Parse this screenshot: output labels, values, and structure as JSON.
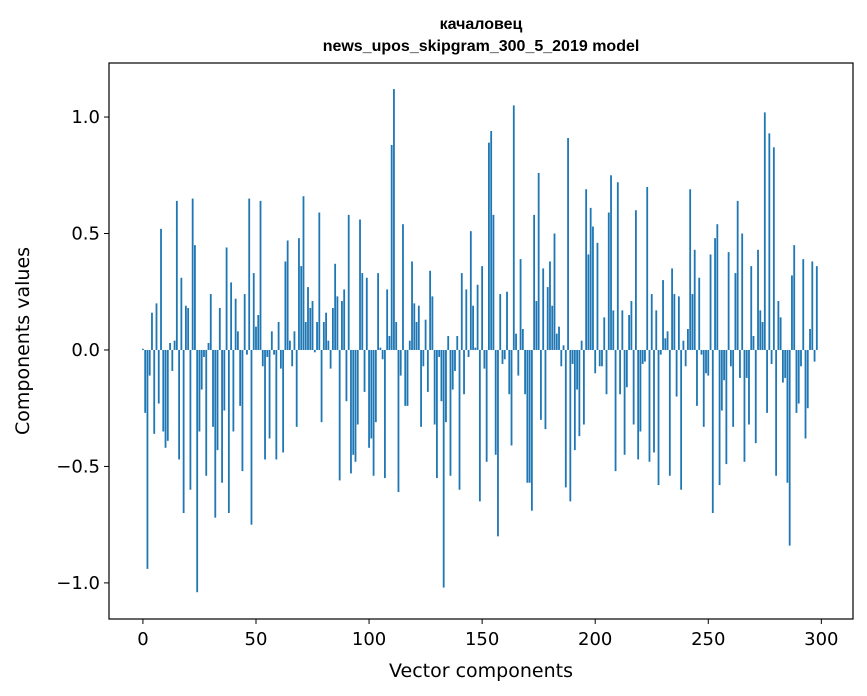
{
  "chart_data": {
    "type": "bar",
    "title": [
      "качаловец",
      "news_upos_skipgram_300_5_2019 model"
    ],
    "xlabel": "Vector components",
    "ylabel": "Components values",
    "xlim": [
      -15,
      314
    ],
    "ylim": [
      -1.155,
      1.232
    ],
    "xticks": [
      0,
      50,
      100,
      150,
      200,
      250,
      300
    ],
    "xtick_labels": [
      "0",
      "50",
      "100",
      "150",
      "200",
      "250",
      "300"
    ],
    "yticks": [
      -1.0,
      -0.5,
      0.0,
      0.5,
      1.0
    ],
    "ytick_labels": [
      "−1.0",
      "−0.5",
      "0.0",
      "0.5",
      "1.0"
    ],
    "grid": false,
    "bar_color": "#1f77b4",
    "values": [
      0.005,
      -0.27,
      -0.94,
      -0.11,
      0.16,
      -0.36,
      0.2,
      -0.23,
      0.52,
      -0.35,
      -0.42,
      -0.39,
      0.03,
      -0.09,
      0.04,
      0.64,
      -0.47,
      0.31,
      -0.7,
      0.19,
      0.18,
      -0.6,
      0.65,
      0.45,
      -1.04,
      -0.35,
      -0.17,
      -0.03,
      -0.54,
      0.03,
      0.24,
      -0.33,
      -0.72,
      -0.43,
      0.18,
      -0.57,
      -0.26,
      0.44,
      -0.7,
      0.29,
      -0.35,
      0.22,
      0.08,
      -0.24,
      -0.52,
      0.24,
      -0.02,
      0.65,
      -0.75,
      0.33,
      0.1,
      0.15,
      0.64,
      -0.07,
      -0.47,
      -0.03,
      -0.38,
      0.08,
      -0.02,
      -0.47,
      0.12,
      -0.08,
      -0.44,
      0.38,
      0.47,
      0.04,
      -0.07,
      0.08,
      -0.33,
      0.48,
      0.36,
      0.66,
      0.12,
      0.27,
      0.18,
      0.21,
      -0.01,
      0.12,
      0.59,
      -0.31,
      0.12,
      0.16,
      0.04,
      -0.08,
      0.18,
      0.37,
      0.23,
      -0.56,
      0.21,
      0.26,
      -0.22,
      0.58,
      -0.53,
      -0.45,
      -0.48,
      -0.32,
      0.56,
      0.33,
      -0.18,
      0.31,
      -0.42,
      -0.38,
      -0.54,
      -0.31,
      0.33,
      0.01,
      -0.04,
      -0.55,
      0.26,
      0.06,
      0.88,
      1.12,
      0.12,
      -0.61,
      -0.11,
      0.54,
      -0.24,
      -0.24,
      0.04,
      0.38,
      0.2,
      0.12,
      0.19,
      -0.33,
      -0.07,
      0.13,
      -0.18,
      0.34,
      0.23,
      -0.32,
      -0.55,
      -0.03,
      -0.22,
      -1.02,
      -0.31,
      0.06,
      -0.54,
      -0.17,
      -0.09,
      0.06,
      -0.6,
      0.33,
      -0.19,
      0.26,
      -0.03,
      0.51,
      0.19,
      0.01,
      0.28,
      -0.65,
      0.36,
      -0.08,
      -0.48,
      0.89,
      0.94,
      0.58,
      -0.45,
      -0.8,
      0.24,
      -0.06,
      -0.04,
      0.25,
      -0.19,
      -0.41,
      1.05,
      0.07,
      -0.11,
      0.39,
      0.09,
      -0.19,
      -0.57,
      -0.57,
      -0.69,
      0.58,
      0.21,
      0.76,
      -0.3,
      0.35,
      -0.34,
      0.27,
      0.38,
      0.19,
      0.5,
      0.07,
      0.1,
      -0.07,
      0.02,
      -0.59,
      0.91,
      -0.65,
      -0.06,
      -0.43,
      -0.17,
      -0.37,
      0.04,
      -0.32,
      0.69,
      0.41,
      0.61,
      0.53,
      -0.1,
      0.46,
      -0.07,
      -0.07,
      0.14,
      -0.19,
      0.59,
      0.75,
      0.17,
      -0.52,
      0.72,
      -0.19,
      0.17,
      -0.45,
      -0.16,
      0.15,
      0.21,
      -0.32,
      0.6,
      -0.47,
      -0.35,
      -0.06,
      -0.05,
      0.7,
      -0.48,
      0.24,
      -0.44,
      0.17,
      -0.58,
      -0.02,
      0.3,
      0.05,
      0.08,
      -0.54,
      0.35,
      0.24,
      -0.2,
      0.23,
      -0.6,
      0.04,
      -0.07,
      0.09,
      0.69,
      0.24,
      0.43,
      -0.24,
      0.31,
      -0.02,
      -0.33,
      -0.1,
      -0.11,
      0.41,
      -0.7,
      0.48,
      0.54,
      -0.58,
      -0.26,
      -0.13,
      -0.49,
      0.42,
      -0.07,
      -0.33,
      0.33,
      0.64,
      -0.12,
      0.5,
      -0.48,
      -0.12,
      -0.32,
      0.36,
      0.06,
      -0.4,
      0.43,
      0.17,
      0.12,
      1.02,
      -0.27,
      0.93,
      -0.06,
      0.87,
      -0.54,
      0.21,
      0.14,
      -0.14,
      -0.12,
      -0.57,
      -0.84,
      0.32,
      0.45,
      -0.27,
      -0.23,
      -0.07,
      0.39,
      -0.38,
      -0.25,
      0.09,
      0.38,
      -0.05,
      0.36
    ]
  }
}
